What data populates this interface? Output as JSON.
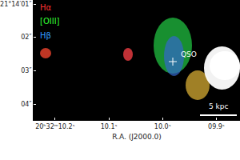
{
  "chart_data": {
    "type": "image",
    "xlabel": "R.A. (J2000.0)",
    "xlim": [
      10.24,
      9.856
    ],
    "xticks": [
      {
        "value": 10.2,
        "label": "20ʰ32ᵐ10.2ˢ"
      },
      {
        "value": 10.1,
        "label": "10.1ˢ"
      },
      {
        "value": 10.0,
        "label": "10.0ˢ"
      },
      {
        "value": 9.9,
        "label": "09.9ˢ"
      }
    ],
    "ylim": [
      4.48,
      0.88
    ],
    "yticks": [
      {
        "value": 1,
        "label": "21°14′01″"
      },
      {
        "value": 2,
        "label": "02″"
      },
      {
        "value": 3,
        "label": "03″"
      },
      {
        "value": 4,
        "label": "04″"
      }
    ],
    "grid": false,
    "annotations": [
      {
        "text": "Hα",
        "color": "#ff3030"
      },
      {
        "text": "[OIII]",
        "color": "#33ff33"
      },
      {
        "text": "Hβ",
        "color": "#3399ff"
      }
    ],
    "marker_label": "QSO",
    "scale_bar": "5 kpc"
  }
}
